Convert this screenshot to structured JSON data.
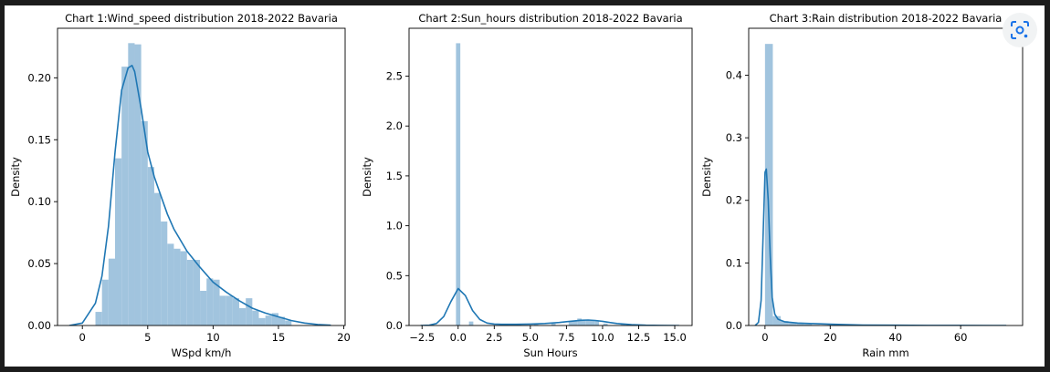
{
  "overlay": {
    "icon": "google-lens-icon"
  },
  "colors": {
    "bar": "#a1c4de",
    "line": "#1f77b4",
    "axis": "#000000"
  },
  "chart_data": [
    {
      "type": "histogram",
      "title": "Chart 1:Wind_speed distribution 2018-2022 Bavaria",
      "xlabel": "WSpd km/h",
      "ylabel": "Density",
      "xlim": [
        -1.9,
        20.1
      ],
      "ylim": [
        0,
        0.24
      ],
      "xticks": [
        0,
        5,
        10,
        15,
        20
      ],
      "yticks": [
        0.0,
        0.05,
        0.1,
        0.15,
        0.2
      ],
      "ytick_labels": [
        "0.00",
        "0.05",
        "0.10",
        "0.15",
        "0.20"
      ],
      "bin_width": 0.5,
      "bins": [
        {
          "x": 1.0,
          "density": 0.011
        },
        {
          "x": 1.5,
          "density": 0.037
        },
        {
          "x": 2.0,
          "density": 0.054
        },
        {
          "x": 2.5,
          "density": 0.135
        },
        {
          "x": 3.0,
          "density": 0.209
        },
        {
          "x": 3.5,
          "density": 0.228
        },
        {
          "x": 4.0,
          "density": 0.227
        },
        {
          "x": 4.5,
          "density": 0.165
        },
        {
          "x": 5.0,
          "density": 0.128
        },
        {
          "x": 5.5,
          "density": 0.107
        },
        {
          "x": 6.0,
          "density": 0.084
        },
        {
          "x": 6.5,
          "density": 0.066
        },
        {
          "x": 7.0,
          "density": 0.062
        },
        {
          "x": 7.5,
          "density": 0.06
        },
        {
          "x": 8.0,
          "density": 0.053
        },
        {
          "x": 8.5,
          "density": 0.053
        },
        {
          "x": 9.0,
          "density": 0.028
        },
        {
          "x": 9.5,
          "density": 0.038
        },
        {
          "x": 10.0,
          "density": 0.037
        },
        {
          "x": 10.5,
          "density": 0.024
        },
        {
          "x": 11.0,
          "density": 0.024
        },
        {
          "x": 11.5,
          "density": 0.022
        },
        {
          "x": 12.0,
          "density": 0.014
        },
        {
          "x": 12.5,
          "density": 0.022
        },
        {
          "x": 13.0,
          "density": 0.012
        },
        {
          "x": 13.5,
          "density": 0.006
        },
        {
          "x": 14.0,
          "density": 0.008
        },
        {
          "x": 14.5,
          "density": 0.01
        },
        {
          "x": 15.0,
          "density": 0.007
        },
        {
          "x": 15.5,
          "density": 0.004
        }
      ],
      "kde": {
        "x": [
          -1,
          0,
          1,
          1.5,
          2,
          2.5,
          3,
          3.5,
          3.8,
          4,
          4.5,
          5,
          5.5,
          6,
          6.5,
          7,
          8,
          9,
          10,
          11,
          12,
          13,
          14,
          15,
          16,
          17,
          18,
          19
        ],
        "y": [
          0.0,
          0.002,
          0.018,
          0.04,
          0.08,
          0.14,
          0.19,
          0.208,
          0.21,
          0.205,
          0.175,
          0.14,
          0.12,
          0.105,
          0.09,
          0.078,
          0.06,
          0.047,
          0.035,
          0.027,
          0.02,
          0.014,
          0.01,
          0.007,
          0.004,
          0.002,
          0.0008,
          0.0002
        ]
      }
    },
    {
      "type": "histogram",
      "title": "Chart 2:Sun_hours distribution 2018-2022 Bavaria",
      "xlabel": "Sun Hours",
      "ylabel": "Density",
      "xlim": [
        -3.4,
        16.2
      ],
      "ylim": [
        0,
        2.98
      ],
      "xticks": [
        -2.5,
        0.0,
        2.5,
        5.0,
        7.5,
        10.0,
        12.5,
        15.0
      ],
      "xtick_labels": [
        "−2.5",
        "0.0",
        "2.5",
        "5.0",
        "7.5",
        "10.0",
        "12.5",
        "15.0"
      ],
      "yticks": [
        0.0,
        0.5,
        1.0,
        1.5,
        2.0,
        2.5
      ],
      "ytick_labels": [
        "0.0",
        "0.5",
        "1.0",
        "1.5",
        "2.0",
        "2.5"
      ],
      "bin_width": 0.3,
      "bins": [
        {
          "x": -0.15,
          "density": 2.83
        },
        {
          "x": 0.75,
          "density": 0.04
        },
        {
          "x": 2.85,
          "density": 0.01
        },
        {
          "x": 3.15,
          "density": 0.01
        },
        {
          "x": 4.05,
          "density": 0.01
        },
        {
          "x": 5.25,
          "density": 0.01
        },
        {
          "x": 6.45,
          "density": 0.02
        },
        {
          "x": 7.65,
          "density": 0.04
        },
        {
          "x": 7.95,
          "density": 0.05
        },
        {
          "x": 8.25,
          "density": 0.07
        },
        {
          "x": 8.55,
          "density": 0.06
        },
        {
          "x": 8.85,
          "density": 0.06
        },
        {
          "x": 9.15,
          "density": 0.05
        },
        {
          "x": 9.45,
          "density": 0.05
        },
        {
          "x": 10.05,
          "density": 0.02
        },
        {
          "x": 11.25,
          "density": 0.01
        },
        {
          "x": 15.0,
          "density": 0.01
        }
      ],
      "kde": {
        "x": [
          -2.6,
          -2,
          -1.5,
          -1,
          -0.5,
          0,
          0.5,
          1,
          1.5,
          2,
          2.5,
          3,
          4,
          5,
          6,
          7,
          7.5,
          8,
          8.5,
          9,
          9.5,
          10,
          10.5,
          11,
          12,
          13,
          14,
          15
        ],
        "y": [
          0.0,
          0.003,
          0.02,
          0.09,
          0.24,
          0.37,
          0.3,
          0.15,
          0.06,
          0.025,
          0.015,
          0.012,
          0.012,
          0.015,
          0.02,
          0.03,
          0.038,
          0.045,
          0.052,
          0.055,
          0.05,
          0.042,
          0.03,
          0.02,
          0.008,
          0.003,
          0.001,
          0.0
        ]
      }
    },
    {
      "type": "histogram",
      "title": "Chart 3:Rain distribution 2018-2022 Bavaria",
      "xlabel": "Rain mm",
      "ylabel": "Density",
      "xlim": [
        -5,
        79
      ],
      "ylim": [
        0,
        0.475
      ],
      "xticks": [
        0,
        20,
        40,
        60
      ],
      "yticks": [
        0.0,
        0.1,
        0.2,
        0.3,
        0.4
      ],
      "ytick_labels": [
        "0.0",
        "0.1",
        "0.2",
        "0.3",
        "0.4"
      ],
      "bin_width": 2.4,
      "bins": [
        {
          "x": 0.0,
          "density": 0.45
        },
        {
          "x": 2.4,
          "density": 0.015
        },
        {
          "x": 4.8,
          "density": 0.007
        },
        {
          "x": 7.2,
          "density": 0.004
        },
        {
          "x": 9.6,
          "density": 0.003
        },
        {
          "x": 12.0,
          "density": 0.002
        },
        {
          "x": 14.4,
          "density": 0.001
        },
        {
          "x": 19.2,
          "density": 0.001
        },
        {
          "x": 28.8,
          "density": 0.0006
        },
        {
          "x": 45.6,
          "density": 0.0004
        },
        {
          "x": 69.6,
          "density": 0.0003
        }
      ],
      "kde": {
        "x": [
          -3,
          -2,
          -1.2,
          -0.6,
          0,
          0.4,
          1,
          1.6,
          2.2,
          3,
          4,
          6,
          10,
          20,
          30,
          40,
          50,
          60,
          70,
          74
        ],
        "y": [
          0.0,
          0.005,
          0.04,
          0.14,
          0.245,
          0.25,
          0.2,
          0.11,
          0.045,
          0.018,
          0.01,
          0.006,
          0.004,
          0.002,
          0.0008,
          0.0004,
          0.0002,
          0.0001,
          5e-05,
          0.0
        ]
      }
    }
  ]
}
